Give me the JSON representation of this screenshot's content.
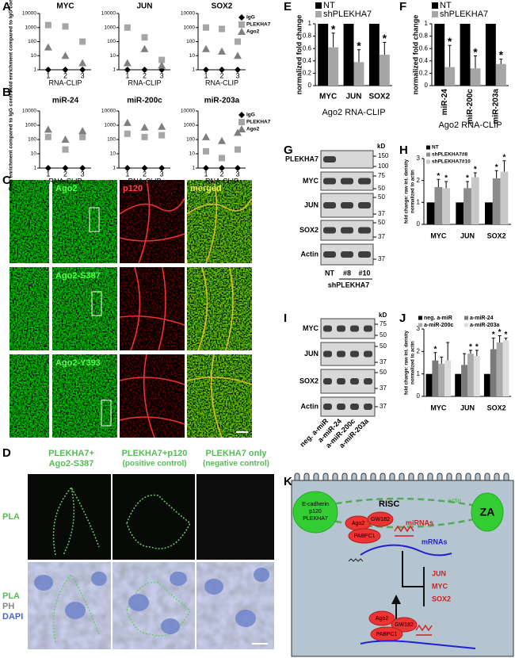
{
  "panel_letters": [
    "A",
    "B",
    "C",
    "D",
    "E",
    "F",
    "G",
    "H",
    "I",
    "J",
    "K"
  ],
  "chart_data": [
    {
      "type": "scatter",
      "subplot_titles": [
        "MYC",
        "JUN",
        "SOX2"
      ],
      "categories": [
        "1",
        "2",
        "3"
      ],
      "xlabel": "RNA-CLIP",
      "ylabel": "Fold enrichment compared to IgG control",
      "log_scale": true,
      "ylim": [
        1,
        10000
      ],
      "yticks": [
        1,
        10,
        100,
        1000,
        10000
      ],
      "legend": "right",
      "series": [
        {
          "name": "IgG",
          "color": "#000000",
          "marker": "diamond",
          "values": [
            [
              1,
              1,
              1
            ],
            [
              1,
              1,
              1
            ],
            [
              1,
              1,
              1
            ]
          ]
        },
        {
          "name": "PLEKHA7",
          "color": "#a6a6a6",
          "marker": "square",
          "values": [
            [
              1500,
              1200,
              100
            ],
            [
              1000,
              200,
              5
            ],
            [
              1000,
              800,
              100
            ]
          ]
        },
        {
          "name": "Ago2",
          "color": "#7f7f7f",
          "marker": "triangle",
          "values": [
            [
              40,
              10,
              3
            ],
            [
              3,
              30,
              2
            ],
            [
              30,
              20,
              10
            ]
          ]
        }
      ]
    },
    {
      "type": "scatter",
      "subplot_titles": [
        "miR-24",
        "miR-200c",
        "miR-203a"
      ],
      "categories": [
        "1",
        "2",
        "3"
      ],
      "xlabel": "RNA-CLIP",
      "ylabel": "Fold enrichment compared to IgG control",
      "log_scale": true,
      "ylim": [
        1,
        10000
      ],
      "yticks": [
        1,
        10,
        100,
        1000,
        10000
      ],
      "legend": "right",
      "series": [
        {
          "name": "IgG",
          "color": "#000000",
          "marker": "diamond",
          "values": [
            [
              1,
              1,
              1
            ],
            [
              1,
              1,
              1
            ],
            [
              1,
              1,
              1
            ]
          ]
        },
        {
          "name": "PLEKHA7",
          "color": "#a6a6a6",
          "marker": "square",
          "values": [
            [
              150,
              20,
              150
            ],
            [
              250,
              150,
              200
            ],
            [
              15,
              5,
              20
            ]
          ]
        },
        {
          "name": "Ago2",
          "color": "#7f7f7f",
          "marker": "triangle",
          "values": [
            [
              500,
              100,
              400
            ],
            [
              1500,
              700,
              800
            ],
            [
              150,
              80,
              300
            ]
          ]
        }
      ]
    },
    {
      "type": "bar",
      "categories": [
        "MYC",
        "JUN",
        "SOX2"
      ],
      "xlabel": "Ago2 RNA-CLIP",
      "ylabel": "normalized fold change",
      "ylim": [
        0,
        1
      ],
      "yticks": [
        0,
        0.2,
        0.4,
        0.6,
        0.8,
        1
      ],
      "legend": "top",
      "series": [
        {
          "name": "NT",
          "color": "#000000",
          "values": [
            1,
            1,
            1
          ]
        },
        {
          "name": "shPLEKHA7",
          "color": "#a6a6a6",
          "values": [
            0.62,
            0.38,
            0.5
          ],
          "errors": [
            0.23,
            0.2,
            0.2
          ],
          "annotations": [
            "*",
            "*",
            "*"
          ]
        }
      ]
    },
    {
      "type": "bar",
      "categories": [
        "miR-24",
        "miR-200c",
        "miR-203a"
      ],
      "xlabel": "Ago2 RNA-CLIP",
      "ylabel": "normalized fold change",
      "ylim": [
        0,
        1
      ],
      "yticks": [
        0,
        0.2,
        0.4,
        0.6,
        0.8,
        1
      ],
      "legend": "top",
      "series": [
        {
          "name": "NT",
          "color": "#000000",
          "values": [
            1,
            1,
            1
          ]
        },
        {
          "name": "shPLEKHA7",
          "color": "#a6a6a6",
          "values": [
            0.3,
            0.28,
            0.35
          ],
          "errors": [
            0.35,
            0.2,
            0.08
          ],
          "annotations": [
            "*",
            "*",
            "*"
          ]
        }
      ]
    },
    {
      "type": "bar",
      "categories": [
        "MYC",
        "JUN",
        "SOX2"
      ],
      "ylabel": [
        "fold change: raw int. density",
        "normalized to actin"
      ],
      "ylim": [
        0,
        3
      ],
      "yticks": [
        0,
        1,
        2,
        3
      ],
      "legend": "upper left",
      "series": [
        {
          "name": "NT",
          "color": "#000000",
          "values": [
            1,
            1,
            1
          ]
        },
        {
          "name": "shPLEKHA7#8",
          "color": "#8c8c8c",
          "values": [
            1.7,
            1.65,
            2.1
          ],
          "errors": [
            0.35,
            0.3,
            0.35
          ],
          "annotations": [
            "*",
            "*",
            "*"
          ]
        },
        {
          "name": "shPLEKHA7#10",
          "color": "#c8c8c8",
          "values": [
            1.65,
            2.15,
            2.4
          ],
          "errors": [
            0.3,
            0.2,
            0.5
          ],
          "annotations": [
            "*",
            "*",
            "*"
          ]
        }
      ]
    },
    {
      "type": "bar",
      "categories": [
        "MYC",
        "JUN",
        "SOX2"
      ],
      "ylabel": [
        "fold change: raw int. density",
        "normalized to actin"
      ],
      "ylim": [
        0,
        3
      ],
      "yticks": [
        0,
        1,
        2,
        3
      ],
      "legend": "top",
      "series": [
        {
          "name": "neg. a-miR",
          "color": "#000000",
          "values": [
            1,
            1,
            1
          ]
        },
        {
          "name": "a-miR-24",
          "color": "#7a7a7a",
          "values": [
            1.6,
            1.4,
            2.1
          ],
          "errors": [
            0.35,
            0.5,
            0.5
          ],
          "annotations": [
            "*",
            null,
            "*"
          ]
        },
        {
          "name": "a-miR-200c",
          "color": "#ababab",
          "values": [
            1.45,
            1.9,
            2.4
          ],
          "errors": [
            0.3,
            0.15,
            0.3
          ],
          "annotations": [
            null,
            "*",
            "*"
          ]
        },
        {
          "name": "a-miR-203a",
          "color": "#dcdcdc",
          "values": [
            1.6,
            1.8,
            2.5
          ],
          "errors": [
            0.8,
            0.25,
            0.1
          ],
          "annotations": [
            null,
            "*",
            "*"
          ]
        }
      ]
    }
  ],
  "blot_G": {
    "rows": [
      "PLEKHA7",
      "MYC",
      "JUN",
      "SOX2",
      "Actin"
    ],
    "unit": "kD",
    "markers": [
      150,
      100,
      75,
      50,
      50,
      37,
      50,
      37,
      37
    ],
    "lanes": [
      "NT",
      "#8",
      "#10"
    ],
    "group": "shPLEKHA7"
  },
  "blot_I": {
    "rows": [
      "MYC",
      "JUN",
      "SOX2",
      "Actin"
    ],
    "unit": "kD",
    "markers": [
      75,
      50,
      50,
      37,
      50,
      37,
      37
    ],
    "lanes": [
      "neg. a-miR",
      "a-miR-24",
      "a-miR-200c",
      "a-miR-203a"
    ]
  },
  "panel_C": {
    "labels": [
      "Ago2",
      "p120",
      "merged",
      "Ago2-S387",
      "Ago2-Y393"
    ]
  },
  "panel_D": {
    "titles": [
      [
        "PLEKHA7+",
        "Ago2-S387"
      ],
      [
        "PLEKHA7+p120",
        "(positive control)"
      ],
      [
        "PLEKHA7 only",
        "(negative control)"
      ]
    ],
    "row_labels": [
      "PLA",
      "PLA",
      "PH",
      "DAPI"
    ]
  },
  "panel_K": {
    "membrane": [
      "E-cadherin",
      "p120",
      "PLEKHA7"
    ],
    "za": "ZA",
    "actin": "actin",
    "risc": "RISC",
    "complex": [
      "Ago2",
      "GW182",
      "PABPC1"
    ],
    "mirnas": "miRNAs",
    "mrnas": "mRNAs",
    "targets": [
      "JUN",
      "MYC",
      "SOX2"
    ],
    "complex2": [
      "Ago2",
      "GW182",
      "PABPC1"
    ]
  }
}
